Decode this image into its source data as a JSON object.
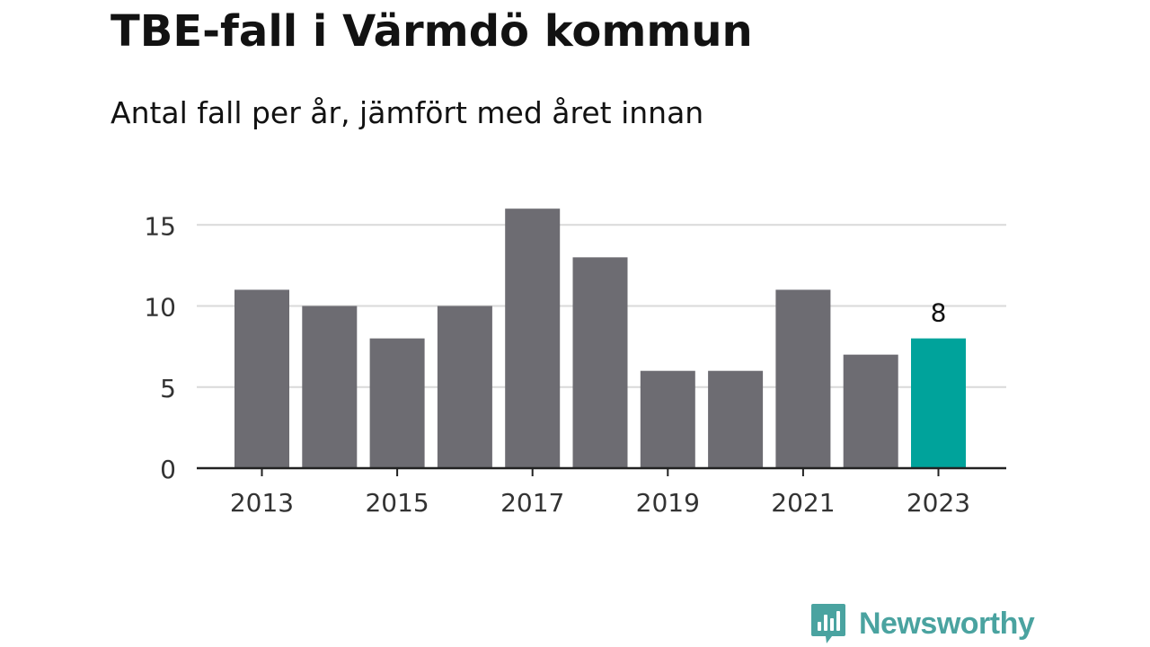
{
  "chart_data": {
    "type": "bar",
    "title": "TBE-fall i Värmdö kommun",
    "subtitle": "Antal fall per år, jämfört med året innan",
    "categories": [
      "2013",
      "2014",
      "2015",
      "2016",
      "2017",
      "2018",
      "2019",
      "2020",
      "2021",
      "2022",
      "2023"
    ],
    "values": [
      11,
      10,
      8,
      10,
      16,
      13,
      6,
      6,
      11,
      7,
      8
    ],
    "x_tick_labels": [
      "2013",
      "2015",
      "2017",
      "2019",
      "2021",
      "2023"
    ],
    "y_ticks": [
      0,
      5,
      10,
      15
    ],
    "ylim": [
      0,
      16
    ],
    "grid": true,
    "highlight": {
      "category": "2023",
      "label": "8"
    },
    "colors": {
      "bar": "#6d6c72",
      "highlight": "#00a39b",
      "grid": "#d9d9d9",
      "axis": "#222222",
      "tick_text": "#333333"
    }
  },
  "brand": {
    "name": "Newsworthy",
    "icon": "newsworthy-logo-icon",
    "color": "#4aa3a0"
  }
}
